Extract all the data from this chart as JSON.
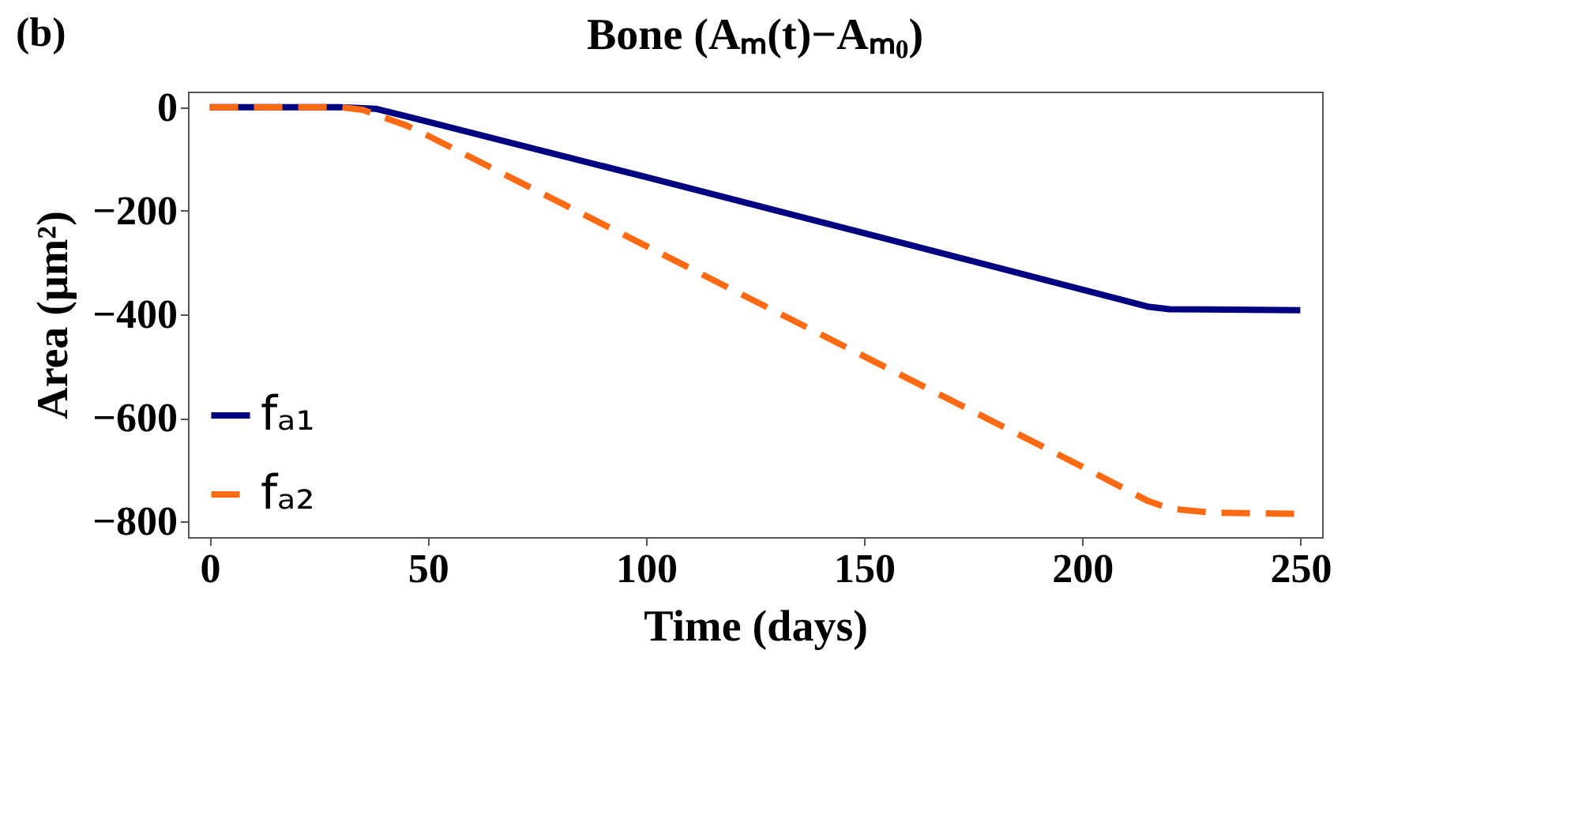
{
  "chart_data": {
    "type": "line",
    "title": "Bone (Aₘ(t)−Aₘ₀)",
    "xlabel": "Time (days)",
    "ylabel": "Area (μm²)",
    "annotations": [
      "(b)"
    ],
    "x": [
      0,
      30,
      38,
      50,
      100,
      150,
      200,
      215,
      220,
      250
    ],
    "series": [
      {
        "name": "fₐ₁",
        "color": "#000080",
        "line_style": "solid",
        "values": [
          0,
          0,
          -3,
          -28,
          -135,
          -243,
          -352,
          -385,
          -390,
          -392
        ]
      },
      {
        "name": "fₐ₂",
        "color": "#ff6a13",
        "line_style": "dashed",
        "x": [
          0,
          30,
          35,
          45,
          50,
          100,
          150,
          200,
          215,
          220,
          230,
          250
        ],
        "values": [
          0,
          0,
          -5,
          -35,
          -55,
          -268,
          -481,
          -694,
          -760,
          -775,
          -783,
          -785
        ]
      }
    ],
    "xlim": [
      -5,
      255
    ],
    "xticks": [
      0,
      50,
      100,
      150,
      200,
      250
    ],
    "ylim": [
      -830,
      30
    ],
    "yticks": [
      0,
      -200,
      -400,
      -600,
      -800
    ],
    "grid": false,
    "legend": "bottom left"
  }
}
